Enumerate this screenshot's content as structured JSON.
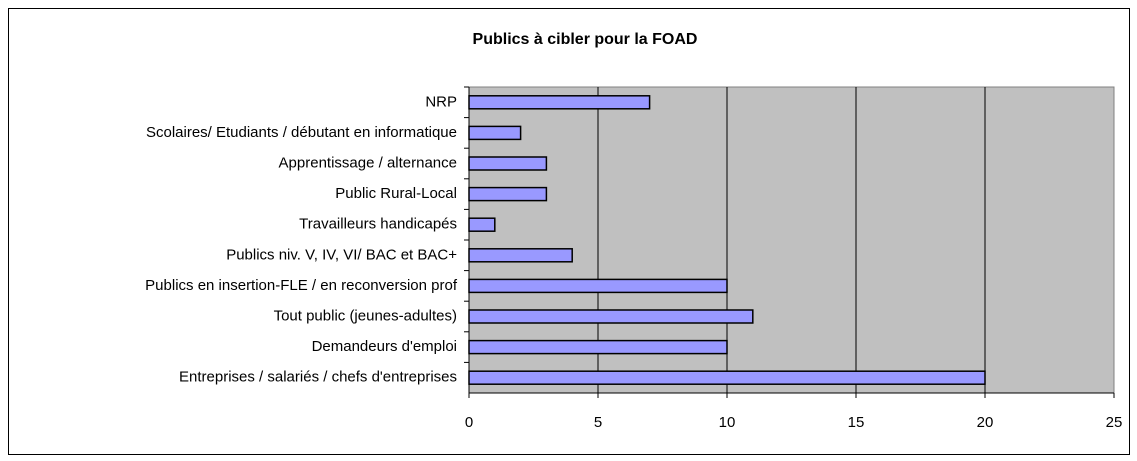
{
  "chart_data": {
    "type": "barh",
    "title": "Publics à cibler pour la FOAD",
    "categories": [
      "NRP",
      "Scolaires/ Etudiants / débutant en informatique",
      "Apprentissage / alternance",
      "Public Rural-Local",
      "Travailleurs handicapés",
      "Publics niv. V, IV, VI/ BAC et BAC+",
      "Publics en insertion-FLE / en reconversion prof",
      "Tout public (jeunes-adultes)",
      "Demandeurs d'emploi",
      "Entreprises / salariés / chefs d'entreprises"
    ],
    "values": [
      7,
      2,
      3,
      3,
      1,
      4,
      10,
      11,
      10,
      20
    ],
    "color": "#9999ff",
    "plot_background": "#c0c0c0",
    "xlim": [
      0,
      25
    ],
    "xticks": [
      0,
      5,
      10,
      15,
      20,
      25
    ],
    "grid": true
  }
}
